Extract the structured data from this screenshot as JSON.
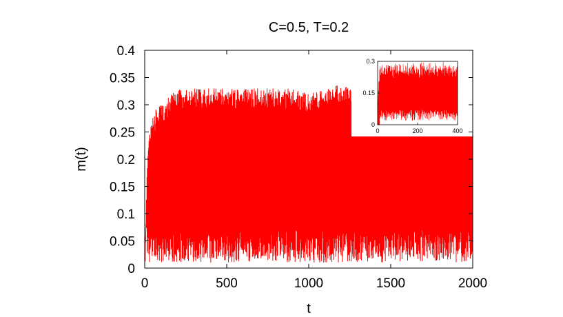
{
  "chart_data": [
    {
      "type": "line",
      "title": "C=0.5, T=0.2",
      "xlabel": "t",
      "ylabel": "m(t)",
      "xlim": [
        0,
        2000
      ],
      "ylim": [
        0,
        0.4
      ],
      "xticks": [
        0,
        500,
        1000,
        1500,
        2000
      ],
      "xtick_labels": [
        "0",
        "500",
        "1000",
        "1500",
        "2000"
      ],
      "yticks": [
        0,
        0.05,
        0.1,
        0.15,
        0.2,
        0.25,
        0.3,
        0.35,
        0.4
      ],
      "ytick_labels": [
        "0",
        "0.05",
        "0.1",
        "0.15",
        "0.2",
        "0.25",
        "0.3",
        "0.35",
        "0.4"
      ],
      "grid": false,
      "series": [
        {
          "color": "#ff0000",
          "description_values": {
            "start": 0,
            "initial_rise_until_t": 30,
            "typical_range": [
              0.01,
              0.34
            ],
            "peak_max": 0.35
          },
          "envelope_upper": [
            [
              0,
              0.0
            ],
            [
              10,
              0.14
            ],
            [
              20,
              0.22
            ],
            [
              30,
              0.26
            ],
            [
              60,
              0.29
            ],
            [
              100,
              0.3
            ],
            [
              200,
              0.33
            ],
            [
              300,
              0.33
            ],
            [
              400,
              0.33
            ],
            [
              500,
              0.33
            ],
            [
              600,
              0.33
            ],
            [
              700,
              0.33
            ],
            [
              800,
              0.33
            ],
            [
              900,
              0.33
            ],
            [
              1000,
              0.32
            ],
            [
              1100,
              0.33
            ],
            [
              1200,
              0.34
            ],
            [
              1300,
              0.32
            ],
            [
              1400,
              0.32
            ],
            [
              1500,
              0.32
            ],
            [
              1600,
              0.32
            ],
            [
              1700,
              0.32
            ],
            [
              1800,
              0.32
            ],
            [
              1900,
              0.32
            ],
            [
              2000,
              0.34
            ]
          ],
          "envelope_lower": [
            [
              0,
              0.0
            ],
            [
              10,
              0.03
            ],
            [
              20,
              0.02
            ],
            [
              30,
              0.01
            ],
            [
              100,
              0.01
            ],
            [
              500,
              0.01
            ],
            [
              1000,
              0.01
            ],
            [
              1500,
              0.01
            ],
            [
              2000,
              0.01
            ]
          ]
        }
      ]
    },
    {
      "type": "line",
      "inset": true,
      "xlim": [
        0,
        400
      ],
      "ylim": [
        0,
        0.3
      ],
      "xticks": [
        0,
        200,
        400
      ],
      "xtick_labels": [
        "0",
        "200",
        "400"
      ],
      "yticks": [
        0,
        0.15,
        0.3
      ],
      "ytick_labels": [
        "0",
        "0.15",
        "0.3"
      ],
      "series": [
        {
          "color": "#ff0000",
          "typical_range": [
            0.02,
            0.3
          ]
        }
      ]
    }
  ]
}
